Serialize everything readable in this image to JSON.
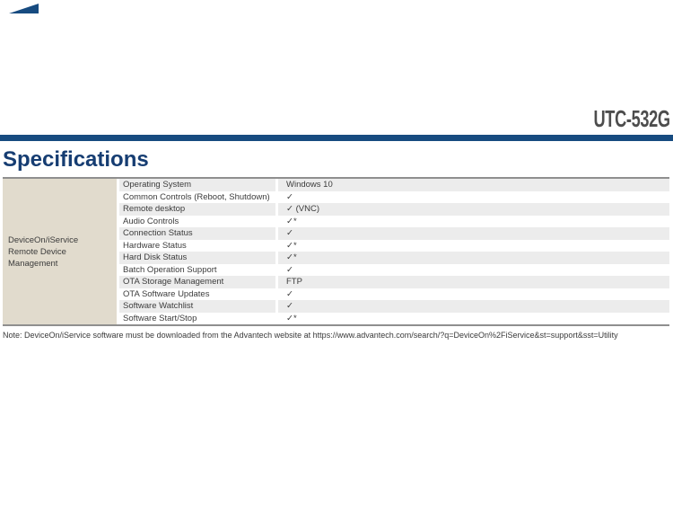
{
  "product_code": "UTC-532G",
  "section_title": "Specifications",
  "colors": {
    "navy_rule": "#174b80",
    "heading_navy": "#163d72",
    "group_cell_beige": "#e1dbcd",
    "row_stripe_gray": "#ececec",
    "table_border_gray": "#8f8f8f",
    "product_code_gray": "#4d4d4d"
  },
  "spec_table": {
    "group_label_line1": "DeviceOn/iService",
    "group_label_line2": "Remote Device Management",
    "rows": [
      {
        "label": "Operating System",
        "value": "Windows 10"
      },
      {
        "label": "Common Controls (Reboot, Shutdown)",
        "value": "✓"
      },
      {
        "label": "Remote desktop",
        "value": "✓ (VNC)"
      },
      {
        "label": "Audio Controls",
        "value": "✓*"
      },
      {
        "label": "Connection Status",
        "value": "✓"
      },
      {
        "label": "Hardware Status",
        "value": "✓*"
      },
      {
        "label": "Hard Disk Status",
        "value": "✓*"
      },
      {
        "label": "Batch Operation Support",
        "value": "✓"
      },
      {
        "label": "OTA Storage Management",
        "value": "FTP"
      },
      {
        "label": "OTA Software Updates",
        "value": "✓"
      },
      {
        "label": "Software Watchlist",
        "value": "✓"
      },
      {
        "label": "Software Start/Stop",
        "value": "✓*"
      }
    ]
  },
  "note": "Note: DeviceOn/iService software must be downloaded from the Advantech website at https://www.advantech.com/search/?q=DeviceOn%2FiService&st=support&sst=Utility"
}
